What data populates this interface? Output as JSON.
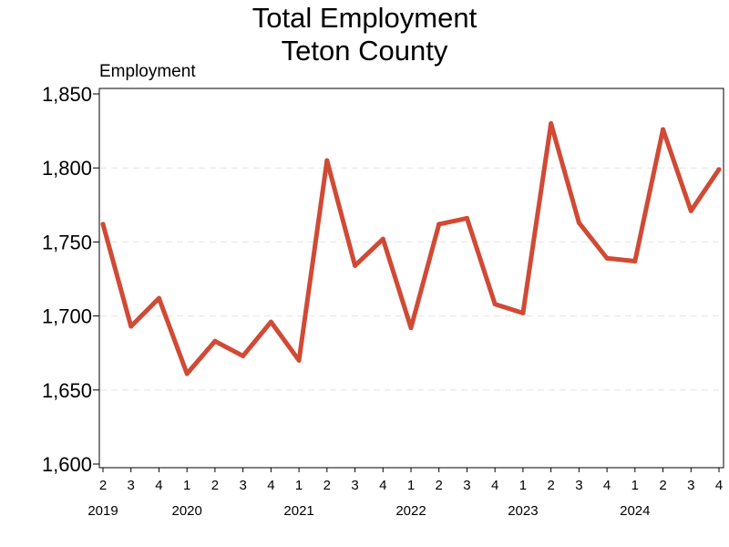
{
  "chart_data": {
    "type": "line",
    "title": "Total Employment",
    "subtitle": "Teton County",
    "ylabel": "Employment",
    "xlabel": "",
    "ylim": [
      1600,
      1850
    ],
    "yticks": [
      1600,
      1650,
      1700,
      1750,
      1800,
      1850
    ],
    "ytick_labels": [
      "1,600",
      "1,650",
      "1,700",
      "1,750",
      "1,800",
      "1,850"
    ],
    "grid": "horizontal dashed",
    "line_color": "#D04A35",
    "x": [
      {
        "quarter": "2",
        "year": "2019"
      },
      {
        "quarter": "3",
        "year": "2019"
      },
      {
        "quarter": "4",
        "year": "2019"
      },
      {
        "quarter": "1",
        "year": "2020"
      },
      {
        "quarter": "2",
        "year": "2020"
      },
      {
        "quarter": "3",
        "year": "2020"
      },
      {
        "quarter": "4",
        "year": "2020"
      },
      {
        "quarter": "1",
        "year": "2021"
      },
      {
        "quarter": "2",
        "year": "2021"
      },
      {
        "quarter": "3",
        "year": "2021"
      },
      {
        "quarter": "4",
        "year": "2021"
      },
      {
        "quarter": "1",
        "year": "2022"
      },
      {
        "quarter": "2",
        "year": "2022"
      },
      {
        "quarter": "3",
        "year": "2022"
      },
      {
        "quarter": "4",
        "year": "2022"
      },
      {
        "quarter": "1",
        "year": "2023"
      },
      {
        "quarter": "2",
        "year": "2023"
      },
      {
        "quarter": "3",
        "year": "2023"
      },
      {
        "quarter": "4",
        "year": "2023"
      },
      {
        "quarter": "1",
        "year": "2024"
      },
      {
        "quarter": "2",
        "year": "2024"
      },
      {
        "quarter": "3",
        "year": "2024"
      },
      {
        "quarter": "4",
        "year": "2024"
      }
    ],
    "year_labels": [
      "2019",
      "2020",
      "2021",
      "2022",
      "2023",
      "2024"
    ],
    "values": [
      1762,
      1693,
      1712,
      1661,
      1683,
      1673,
      1696,
      1670,
      1805,
      1734,
      1752,
      1692,
      1762,
      1766,
      1708,
      1702,
      1830,
      1763,
      1739,
      1737,
      1826,
      1771,
      1799
    ]
  }
}
